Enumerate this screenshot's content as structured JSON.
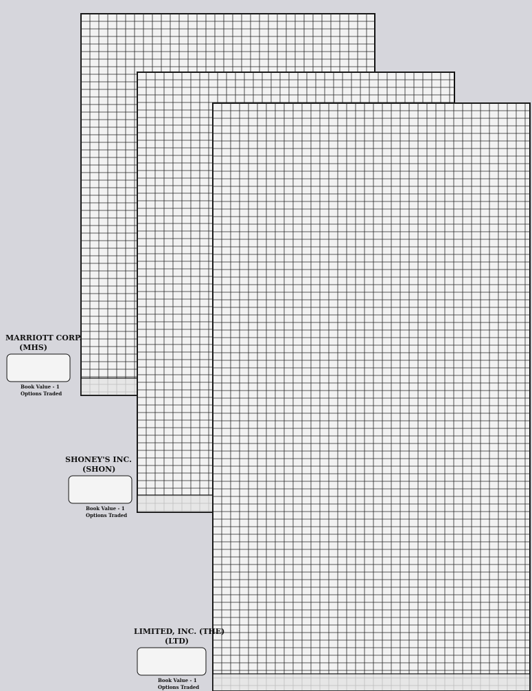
{
  "charts": [
    {
      "company": "MARRIOTT CORP.",
      "ticker": "(MHS)",
      "book_value": "Book Value - 1",
      "volume_label": "Options Traded"
    },
    {
      "company": "SHONEY'S INC.",
      "ticker": "(SHON)",
      "book_value": "Book Value - 1",
      "volume_label": "Options Traded"
    },
    {
      "company": "LIMITED, INC. (THE)",
      "ticker": "(LTD)",
      "book_value": "Book Value - 1",
      "volume_label": "Options Traded"
    }
  ]
}
